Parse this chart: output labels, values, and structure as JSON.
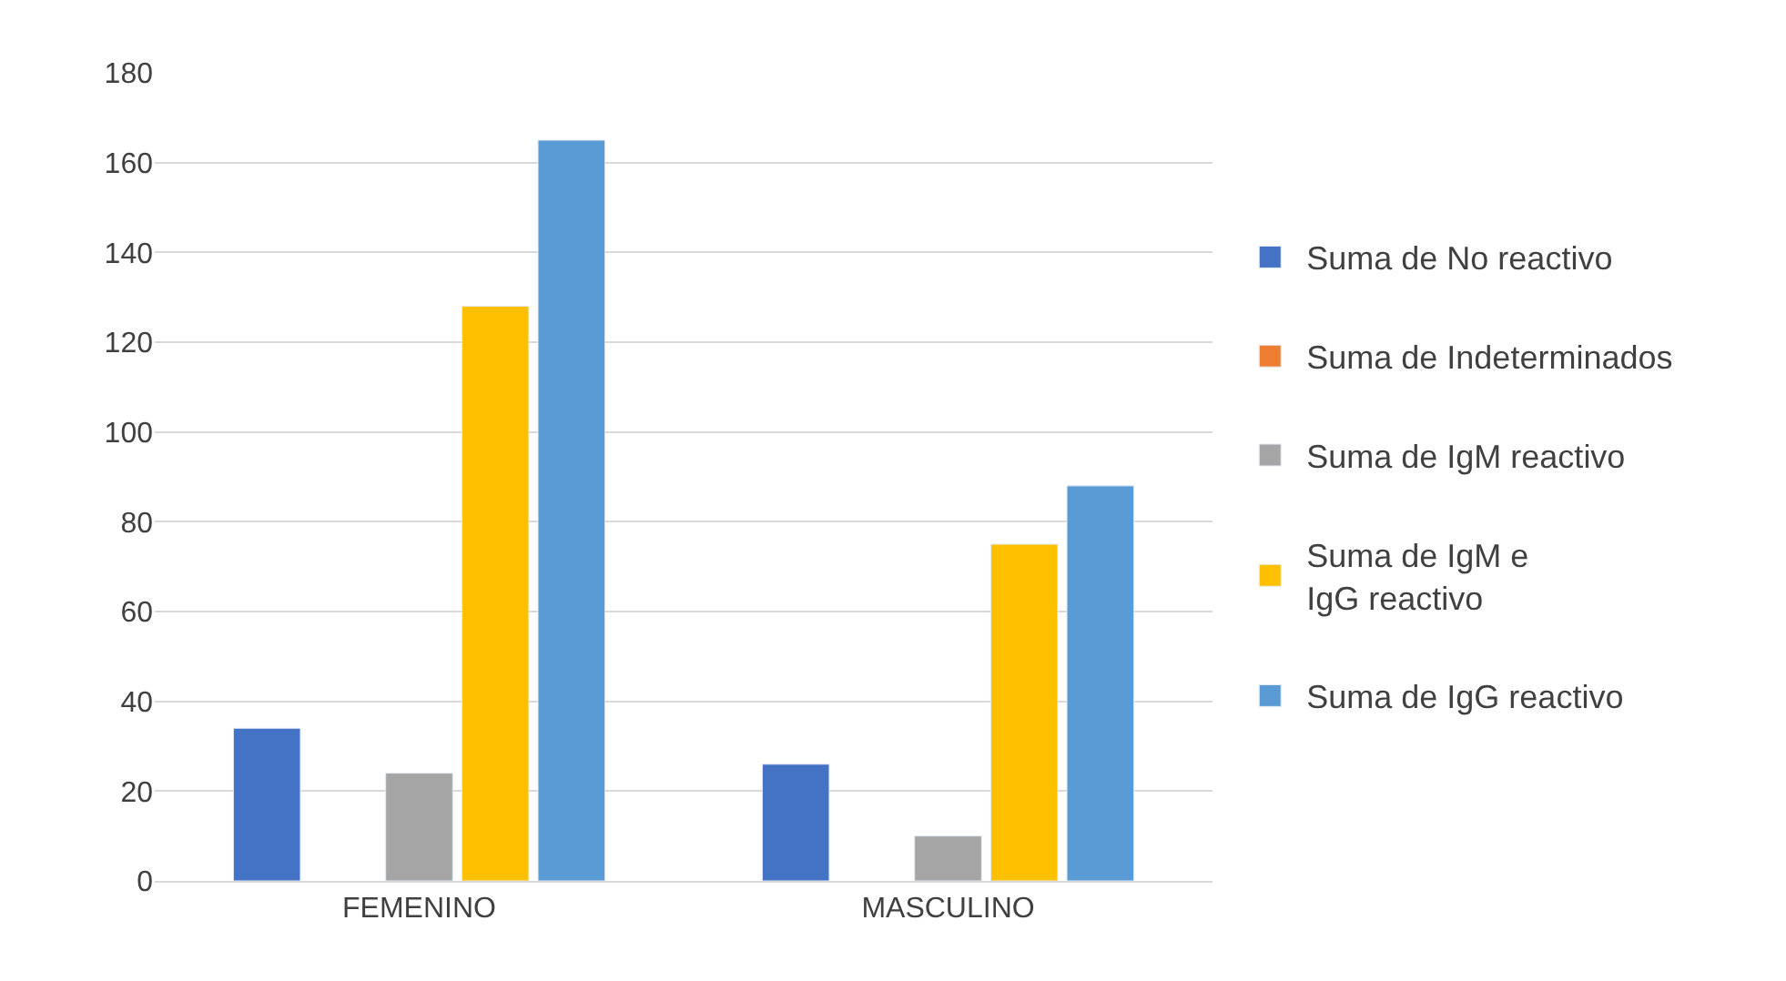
{
  "chart_data": {
    "type": "bar",
    "categories": [
      "FEMENINO",
      "MASCULINO"
    ],
    "series": [
      {
        "name": "Suma de No reactivo",
        "color": "#4472c4",
        "values": [
          34,
          26
        ]
      },
      {
        "name": "Suma de Indeterminados",
        "color": "#ed7d31",
        "values": [
          null,
          null
        ]
      },
      {
        "name": "Suma de IgM reactivo",
        "color": "#a5a5a5",
        "values": [
          24,
          10
        ]
      },
      {
        "name": "Suma de IgM e\nIgG reactivo",
        "color": "#ffc000",
        "values": [
          128,
          75
        ]
      },
      {
        "name": "Suma de IgG reactivo",
        "color": "#5b9bd5",
        "values": [
          165,
          88
        ]
      }
    ],
    "ylim": [
      0,
      180
    ],
    "yticks": [
      0,
      20,
      40,
      60,
      80,
      100,
      120,
      140,
      160,
      180
    ],
    "grid": "y",
    "legend": "right"
  }
}
